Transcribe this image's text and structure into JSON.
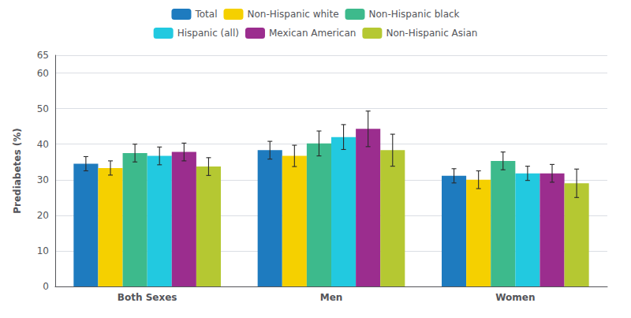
{
  "chart_data": {
    "type": "bar",
    "categories": [
      "Both Sexes",
      "Men",
      "Women"
    ],
    "series": [
      {
        "name": "Total",
        "color": "#1e7bbf",
        "values": [
          34.5,
          38.3,
          31.1
        ],
        "errors": [
          2.0,
          2.5,
          2.0
        ]
      },
      {
        "name": "Non-Hispanic white",
        "color": "#f5d000",
        "values": [
          33.3,
          36.7,
          30.0
        ],
        "errors": [
          2.0,
          3.0,
          2.5
        ]
      },
      {
        "name": "Non-Hispanic black",
        "color": "#3dba8c",
        "values": [
          37.5,
          40.2,
          35.3
        ],
        "errors": [
          2.5,
          3.5,
          2.5
        ]
      },
      {
        "name": "Hispanic (all)",
        "color": "#22c9e0",
        "values": [
          36.7,
          42.0,
          31.8
        ],
        "errors": [
          2.5,
          3.5,
          2.0
        ]
      },
      {
        "name": "Mexican American",
        "color": "#9b2d8e",
        "values": [
          37.8,
          44.3,
          31.8
        ],
        "errors": [
          2.5,
          5.0,
          2.5
        ]
      },
      {
        "name": "Non-Hispanic Asian",
        "color": "#b5c832",
        "values": [
          33.7,
          38.3,
          29.0
        ],
        "errors": [
          2.5,
          4.5,
          4.0
        ]
      }
    ],
    "ylabel": "Prediabetes (%)",
    "ylim": [
      0,
      65
    ],
    "yticks": [
      0,
      10,
      20,
      30,
      40,
      50,
      60
    ],
    "grid": true,
    "legend": "top"
  }
}
